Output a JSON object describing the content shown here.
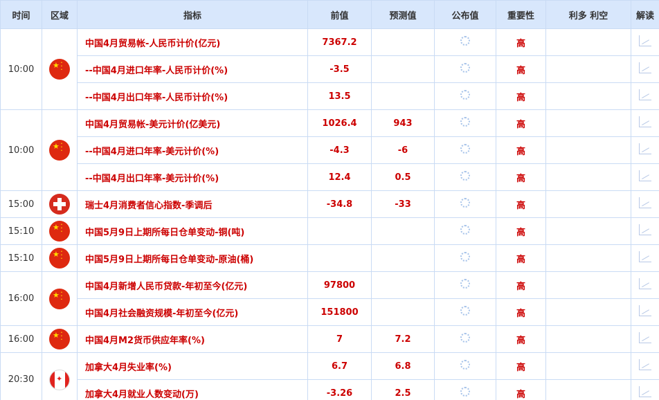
{
  "headers": [
    "时间",
    "区域",
    "指标",
    "前值",
    "预测值",
    "公布值",
    "重要性",
    "利多 利空",
    "解读"
  ],
  "groups": [
    {
      "time": "10:00",
      "flag": "cn",
      "items": [
        {
          "name": "中国4月贸易帐-人民币计价(亿元)",
          "prev": "7367.2",
          "forecast": "",
          "importance": "高"
        },
        {
          "name": "--中国4月进口年率-人民币计价(%)",
          "prev": "-3.5",
          "forecast": "",
          "importance": "高"
        },
        {
          "name": "--中国4月出口年率-人民币计价(%)",
          "prev": "13.5",
          "forecast": "",
          "importance": "高"
        }
      ]
    },
    {
      "time": "10:00",
      "flag": "cn",
      "items": [
        {
          "name": "中国4月贸易帐-美元计价(亿美元)",
          "prev": "1026.4",
          "forecast": "943",
          "importance": "高"
        },
        {
          "name": "--中国4月进口年率-美元计价(%)",
          "prev": "-4.3",
          "forecast": "-6",
          "importance": "高"
        },
        {
          "name": "--中国4月出口年率-美元计价(%)",
          "prev": "12.4",
          "forecast": "0.5",
          "importance": "高"
        }
      ]
    },
    {
      "time": "15:00",
      "flag": "ch",
      "items": [
        {
          "name": "瑞士4月消费者信心指数-季调后",
          "prev": "-34.8",
          "forecast": "-33",
          "importance": "高"
        }
      ]
    },
    {
      "time": "15:10",
      "flag": "cn",
      "items": [
        {
          "name": "中国5月9日上期所每日仓单变动-铜(吨)",
          "prev": "",
          "forecast": "",
          "importance": "高"
        }
      ]
    },
    {
      "time": "15:10",
      "flag": "cn",
      "items": [
        {
          "name": "中国5月9日上期所每日仓单变动-原油(桶)",
          "prev": "",
          "forecast": "",
          "importance": "高"
        }
      ]
    },
    {
      "time": "16:00",
      "flag": "cn",
      "items": [
        {
          "name": "中国4月新增人民币贷款-年初至今(亿元)",
          "prev": "97800",
          "forecast": "",
          "importance": "高"
        },
        {
          "name": "中国4月社会融资规模-年初至今(亿元)",
          "prev": "151800",
          "forecast": "",
          "importance": "高"
        }
      ]
    },
    {
      "time": "16:00",
      "flag": "cn",
      "items": [
        {
          "name": "中国4月M2货币供应年率(%)",
          "prev": "7",
          "forecast": "7.2",
          "importance": "高"
        }
      ]
    },
    {
      "time": "20:30",
      "flag": "ca",
      "items": [
        {
          "name": "加拿大4月失业率(%)",
          "prev": "6.7",
          "forecast": "6.8",
          "importance": "高"
        },
        {
          "name": "加拿大4月就业人数变动(万)",
          "prev": "-3.26",
          "forecast": "2.5",
          "importance": "高"
        }
      ]
    }
  ]
}
